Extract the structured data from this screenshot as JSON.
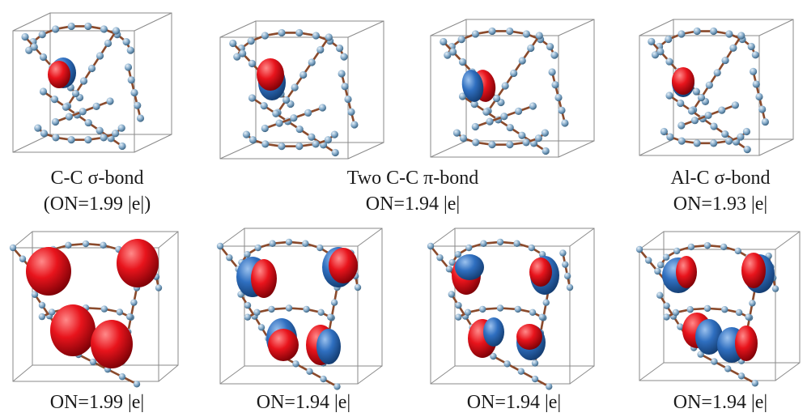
{
  "captions": {
    "top_left_line1": "C-C σ-bond",
    "top_left_line2": "(ON=1.99 |e|)",
    "top_middle_line1": "Two C-C π-bond",
    "top_middle_line2": "ON=1.94 |e|",
    "top_right_line1": "Al-C σ-bond",
    "top_right_line2": "ON=1.93 |e|",
    "bottom_1": "ON=1.99 |e|",
    "bottom_2": "ON=1.94 |e|",
    "bottom_3": "ON=1.94 |e|",
    "bottom_4": "ON=1.94 |e|"
  },
  "colors": {
    "box_edge": "#8a8a8a",
    "atom_c": "#7fa6c6",
    "bond_brown": "#8b4a2b",
    "orbital_red": "#e8141c",
    "orbital_blue": "#2f6fc0"
  }
}
